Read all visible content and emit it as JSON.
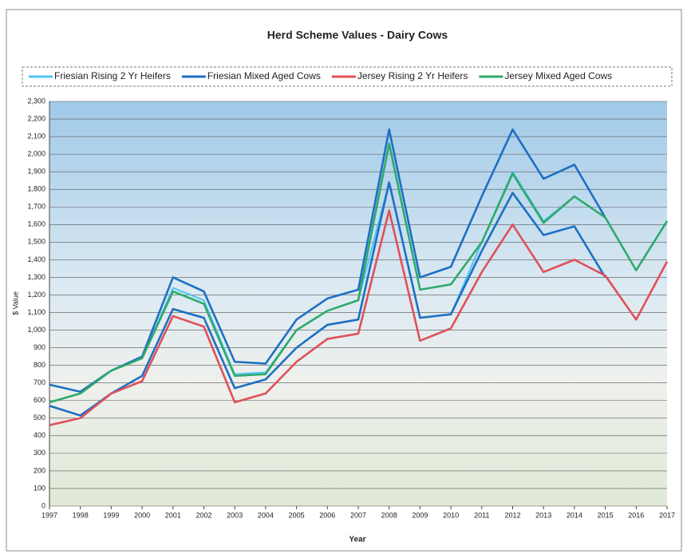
{
  "chart_data": {
    "type": "line",
    "title": "Herd Scheme Values - Dairy Cows",
    "x_label": "Year",
    "y_label": "$ Value",
    "categories": [
      "1997",
      "1998",
      "1999",
      "2000",
      "2001",
      "2002",
      "2003",
      "2004",
      "2005",
      "2006",
      "2007",
      "2008",
      "2009",
      "2010",
      "2011",
      "2012",
      "2013",
      "2014",
      "2015",
      "2016",
      "2017"
    ],
    "series": [
      {
        "name": "Friesian Rising 2 Yr Heifers",
        "color": "#4fc3f7",
        "values": [
          590,
          640,
          770,
          840,
          1240,
          1170,
          750,
          760,
          1000,
          1110,
          1170,
          1840,
          1070,
          1090,
          1500,
          1900,
          1620,
          1760,
          1640,
          1340,
          1620
        ]
      },
      {
        "name": "Friesian Mixed Aged Cows",
        "color": "#1e6fc4",
        "values": [
          690,
          650,
          770,
          850,
          1300,
          1220,
          820,
          810,
          1060,
          1180,
          1230,
          2140,
          1300,
          1360,
          1760,
          2140,
          1860,
          1940,
          1640,
          null,
          null
        ]
      },
      {
        "color": "#1e6fc4",
        "values": [
          570,
          515,
          640,
          740,
          1120,
          1070,
          670,
          720,
          900,
          1030,
          1060,
          1840,
          1070,
          1090,
          1450,
          1780,
          1540,
          1590,
          1300,
          null,
          null
        ]
      },
      {
        "name": "Jersey Rising 2 Yr Heifers",
        "color": "#e0505a",
        "values": [
          460,
          500,
          640,
          710,
          1080,
          1020,
          590,
          640,
          820,
          950,
          980,
          1680,
          940,
          1010,
          1330,
          1600,
          1330,
          1400,
          1310,
          1060,
          1390
        ]
      },
      {
        "name": "Jersey Mixed Aged Cows",
        "color": "#2eaa6a",
        "values": [
          590,
          640,
          770,
          840,
          1220,
          1150,
          740,
          750,
          1000,
          1110,
          1170,
          2060,
          1230,
          1260,
          1500,
          1890,
          1610,
          1760,
          1640,
          1340,
          1620
        ]
      }
    ],
    "ylim": [
      0,
      2300
    ],
    "yticks": [
      0,
      100,
      200,
      300,
      400,
      500,
      600,
      700,
      800,
      900,
      {
        "value": 1000,
        "label": "1,000"
      },
      {
        "value": 1100,
        "label": "1,100"
      },
      {
        "value": 1200,
        "label": "1,200"
      },
      {
        "value": 1300,
        "label": "1,300"
      },
      {
        "value": 1400,
        "label": "1,400"
      },
      {
        "value": 1500,
        "label": "1,500"
      },
      {
        "value": 1600,
        "label": "1,600"
      },
      {
        "value": 1700,
        "label": "1,700"
      },
      {
        "value": 1800,
        "label": "1,800"
      },
      {
        "value": 1900,
        "label": "1,900"
      },
      {
        "value": 2000,
        "label": "2,000"
      },
      {
        "value": 2100,
        "label": "2,100"
      },
      {
        "value": 2200,
        "label": "2,200"
      },
      {
        "value": 2300,
        "label": "2,300"
      }
    ],
    "grid": true
  }
}
